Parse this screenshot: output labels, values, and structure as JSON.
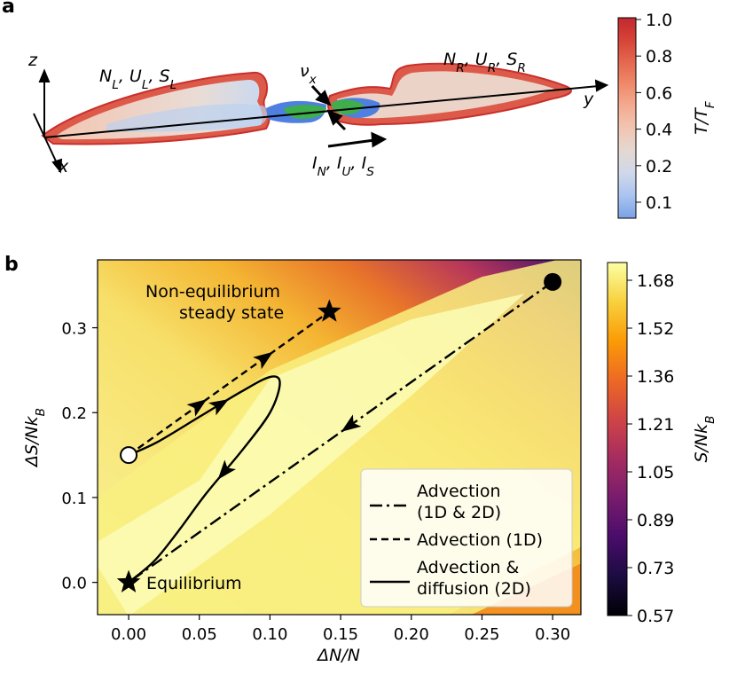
{
  "panel_a": {
    "label": "a",
    "axes": {
      "x": "x",
      "y": "y",
      "z": "z"
    },
    "left_reservoir": "N_L, U_L, S_L",
    "right_reservoir": "N_R, U_R, S_R",
    "nu_label": "ν_x",
    "currents_label": "I_N, I_U, I_S",
    "colorbar": {
      "label": "T/T_F",
      "ticks": [
        "1.0",
        "0.8",
        "0.6",
        "0.4",
        "0.2",
        "0.1"
      ],
      "colors": [
        "#c3282e",
        "#d64337",
        "#e4684f",
        "#ef8a6b",
        "#f4ac92",
        "#f1c6b3",
        "#e4d8d2",
        "#cfd8ea",
        "#aac3f0",
        "#7aa2e6"
      ]
    }
  },
  "panel_b": {
    "label": "b",
    "colorbar": {
      "label": "S/Nk_B",
      "ticks": [
        "1.68",
        "1.52",
        "1.36",
        "1.21",
        "1.05",
        "0.89",
        "0.73",
        "0.57"
      ],
      "colors": [
        "#000004",
        "#1b0c41",
        "#4a0c6b",
        "#781c6d",
        "#a52c60",
        "#cf4446",
        "#ed6925",
        "#fb9b06",
        "#f7d13d",
        "#fcffa4"
      ]
    },
    "annotations": {
      "nes_line1": "Non-equilibrium",
      "nes_line2": "steady state",
      "equilibrium": "Equilibrium"
    }
  },
  "chart_data": {
    "type": "line",
    "title": "",
    "xlabel": "ΔN/N",
    "ylabel": "ΔS/Nk_B",
    "xlim": [
      -0.022,
      0.32
    ],
    "ylim": [
      -0.038,
      0.38
    ],
    "xticks": [
      0.0,
      0.05,
      0.1,
      0.15,
      0.2,
      0.25,
      0.3
    ],
    "xtick_labels": [
      "0.00",
      "0.05",
      "0.10",
      "0.15",
      "0.20",
      "0.25",
      "0.30"
    ],
    "yticks": [
      0.0,
      0.1,
      0.2,
      0.3
    ],
    "ytick_labels": [
      "0.0",
      "0.1",
      "0.2",
      "0.3"
    ],
    "series": [
      {
        "name": "Advection (1D & 2D)",
        "style": "dashdot",
        "x": [
          0.3,
          0.0
        ],
        "y": [
          0.354,
          0.0
        ]
      },
      {
        "name": "Advection (1D)",
        "style": "dashed",
        "x": [
          0.0,
          0.142
        ],
        "y": [
          0.15,
          0.319
        ]
      },
      {
        "name": "Advection & diffusion (2D)",
        "style": "solid",
        "x": [
          0.0,
          0.02,
          0.05,
          0.08,
          0.1,
          0.107,
          0.1,
          0.08,
          0.055,
          0.035,
          0.018,
          0.0
        ],
        "y": [
          0.15,
          0.165,
          0.195,
          0.225,
          0.242,
          0.235,
          0.2,
          0.155,
          0.105,
          0.06,
          0.025,
          0.0
        ]
      }
    ],
    "points": [
      {
        "name": "start-filled-circle",
        "x": 0.3,
        "y": 0.354
      },
      {
        "name": "start-open-circle",
        "x": 0.0,
        "y": 0.15
      },
      {
        "name": "equilibrium-star",
        "x": 0.0,
        "y": 0.0
      },
      {
        "name": "steady-state-star",
        "x": 0.142,
        "y": 0.319
      }
    ],
    "legend": {
      "position": "bottom-right",
      "entries": [
        {
          "line1": "Advection",
          "line2": "(1D & 2D)",
          "style": "dashdot"
        },
        {
          "line1": "Advection (1D)",
          "line2": "",
          "style": "dashed"
        },
        {
          "line1": "Advection &",
          "line2": "diffusion (2D)",
          "style": "solid"
        }
      ]
    }
  }
}
